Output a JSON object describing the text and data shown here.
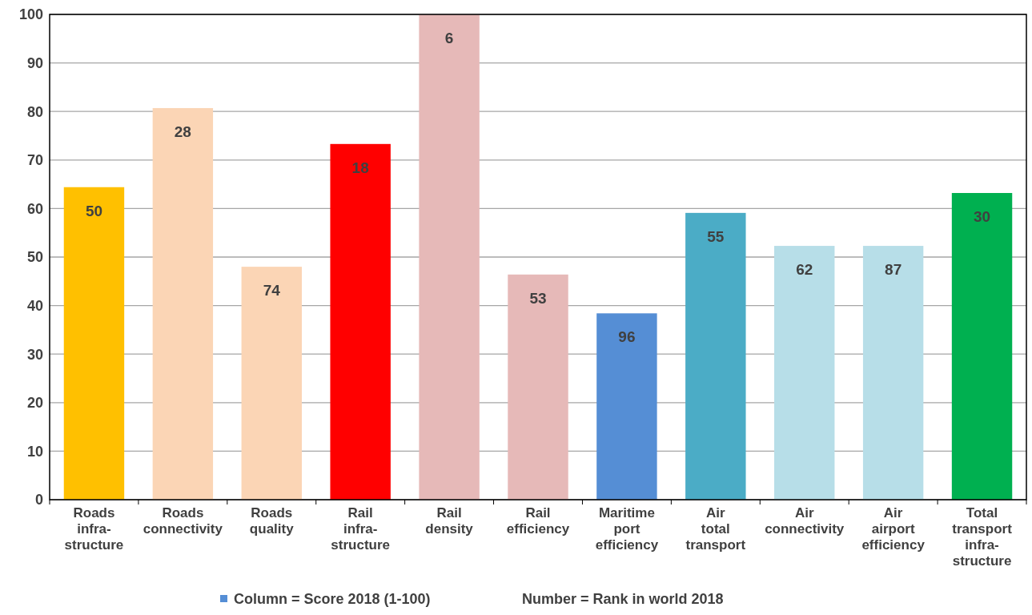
{
  "chart_data": {
    "type": "bar",
    "categories": [
      "Roads\ninfra-\nstructure",
      "Roads\nconnectivity",
      "Roads\nquality",
      "Rail\ninfra-\nstructure",
      "Rail\ndensity",
      "Rail\nefficiency",
      "Maritime\nport\nefficiency",
      "Air\ntotal\ntransport",
      "Air\nconnectivity",
      "Air\nairport\nefficiency",
      "Total\ntransport\ninfra-\nstructure"
    ],
    "series": [
      {
        "name": "Column = Score 2018 (1-100)",
        "color": "#558ed5",
        "colors": [
          "#ffc000",
          "#fbd5b5",
          "#fbd5b5",
          "#ff0000",
          "#e6b9b8",
          "#e6b9b8",
          "#558ed5",
          "#4bacc6",
          "#b7dee8",
          "#b7dee8",
          "#00b050"
        ],
        "values": [
          64.4,
          80.7,
          48,
          73.3,
          100,
          46.4,
          38.4,
          59.1,
          52.3,
          52.3,
          63.2
        ]
      }
    ],
    "ylim": [
      0,
      100
    ],
    "yticks": [
      0,
      10,
      20,
      30,
      40,
      50,
      60,
      70,
      80,
      90,
      100
    ],
    "grid": "y",
    "legend": "bottom",
    "annotations": [
      "50",
      "28",
      "74",
      "18",
      "6",
      "53",
      "96",
      "55",
      "62",
      "87",
      "30",
      "Number = Rank in world 2018"
    ]
  }
}
